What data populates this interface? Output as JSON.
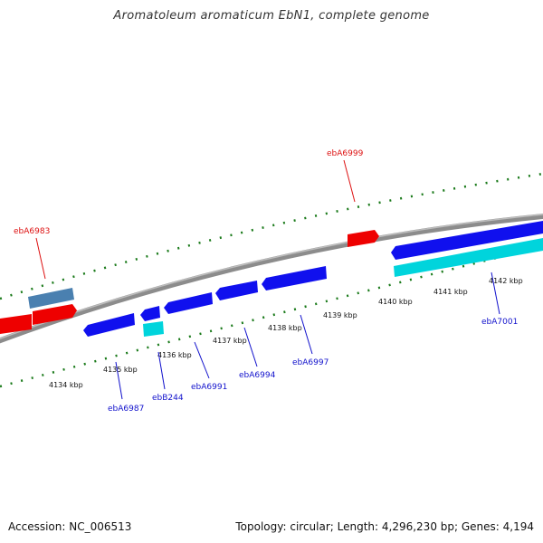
{
  "title": "Aromatoleum aromaticum EbN1, complete genome",
  "footer": {
    "accession": "Accession: NC_006513",
    "summary": "Topology: circular; Length: 4,296,230 bp; Genes: 4,194"
  },
  "colors": {
    "backbone": "#8c8c8c",
    "tick": "#1a7a1a",
    "forward_gene": "#ee0000",
    "reverse_gene": "#1010ee",
    "rna_gene": "#00d4dc",
    "pseudo_gene": "#4a80b0",
    "label_red": "#dd1111",
    "label_blue": "#1111cc"
  },
  "scale": {
    "unit": "kbp",
    "ticks": [
      {
        "value": 4134,
        "label": "4134 kbp"
      },
      {
        "value": 4135,
        "label": "4135 kbp"
      },
      {
        "value": 4136,
        "label": "4136 kbp"
      },
      {
        "value": 4137,
        "label": "4137 kbp"
      },
      {
        "value": 4138,
        "label": "4138 kbp"
      },
      {
        "value": 4139,
        "label": "4139 kbp"
      },
      {
        "value": 4140,
        "label": "4140 kbp"
      },
      {
        "value": 4141,
        "label": "4141 kbp"
      },
      {
        "value": 4142,
        "label": "4142 kbp"
      }
    ]
  },
  "gene_labels": [
    {
      "name": "ebA6983",
      "strand": "forward"
    },
    {
      "name": "ebA6999",
      "strand": "forward"
    },
    {
      "name": "ebA6987",
      "strand": "reverse"
    },
    {
      "name": "ebB244",
      "strand": "reverse"
    },
    {
      "name": "ebA6991",
      "strand": "reverse"
    },
    {
      "name": "ebA6994",
      "strand": "reverse"
    },
    {
      "name": "ebA6997",
      "strand": "reverse"
    },
    {
      "name": "ebA7001",
      "strand": "reverse"
    }
  ]
}
